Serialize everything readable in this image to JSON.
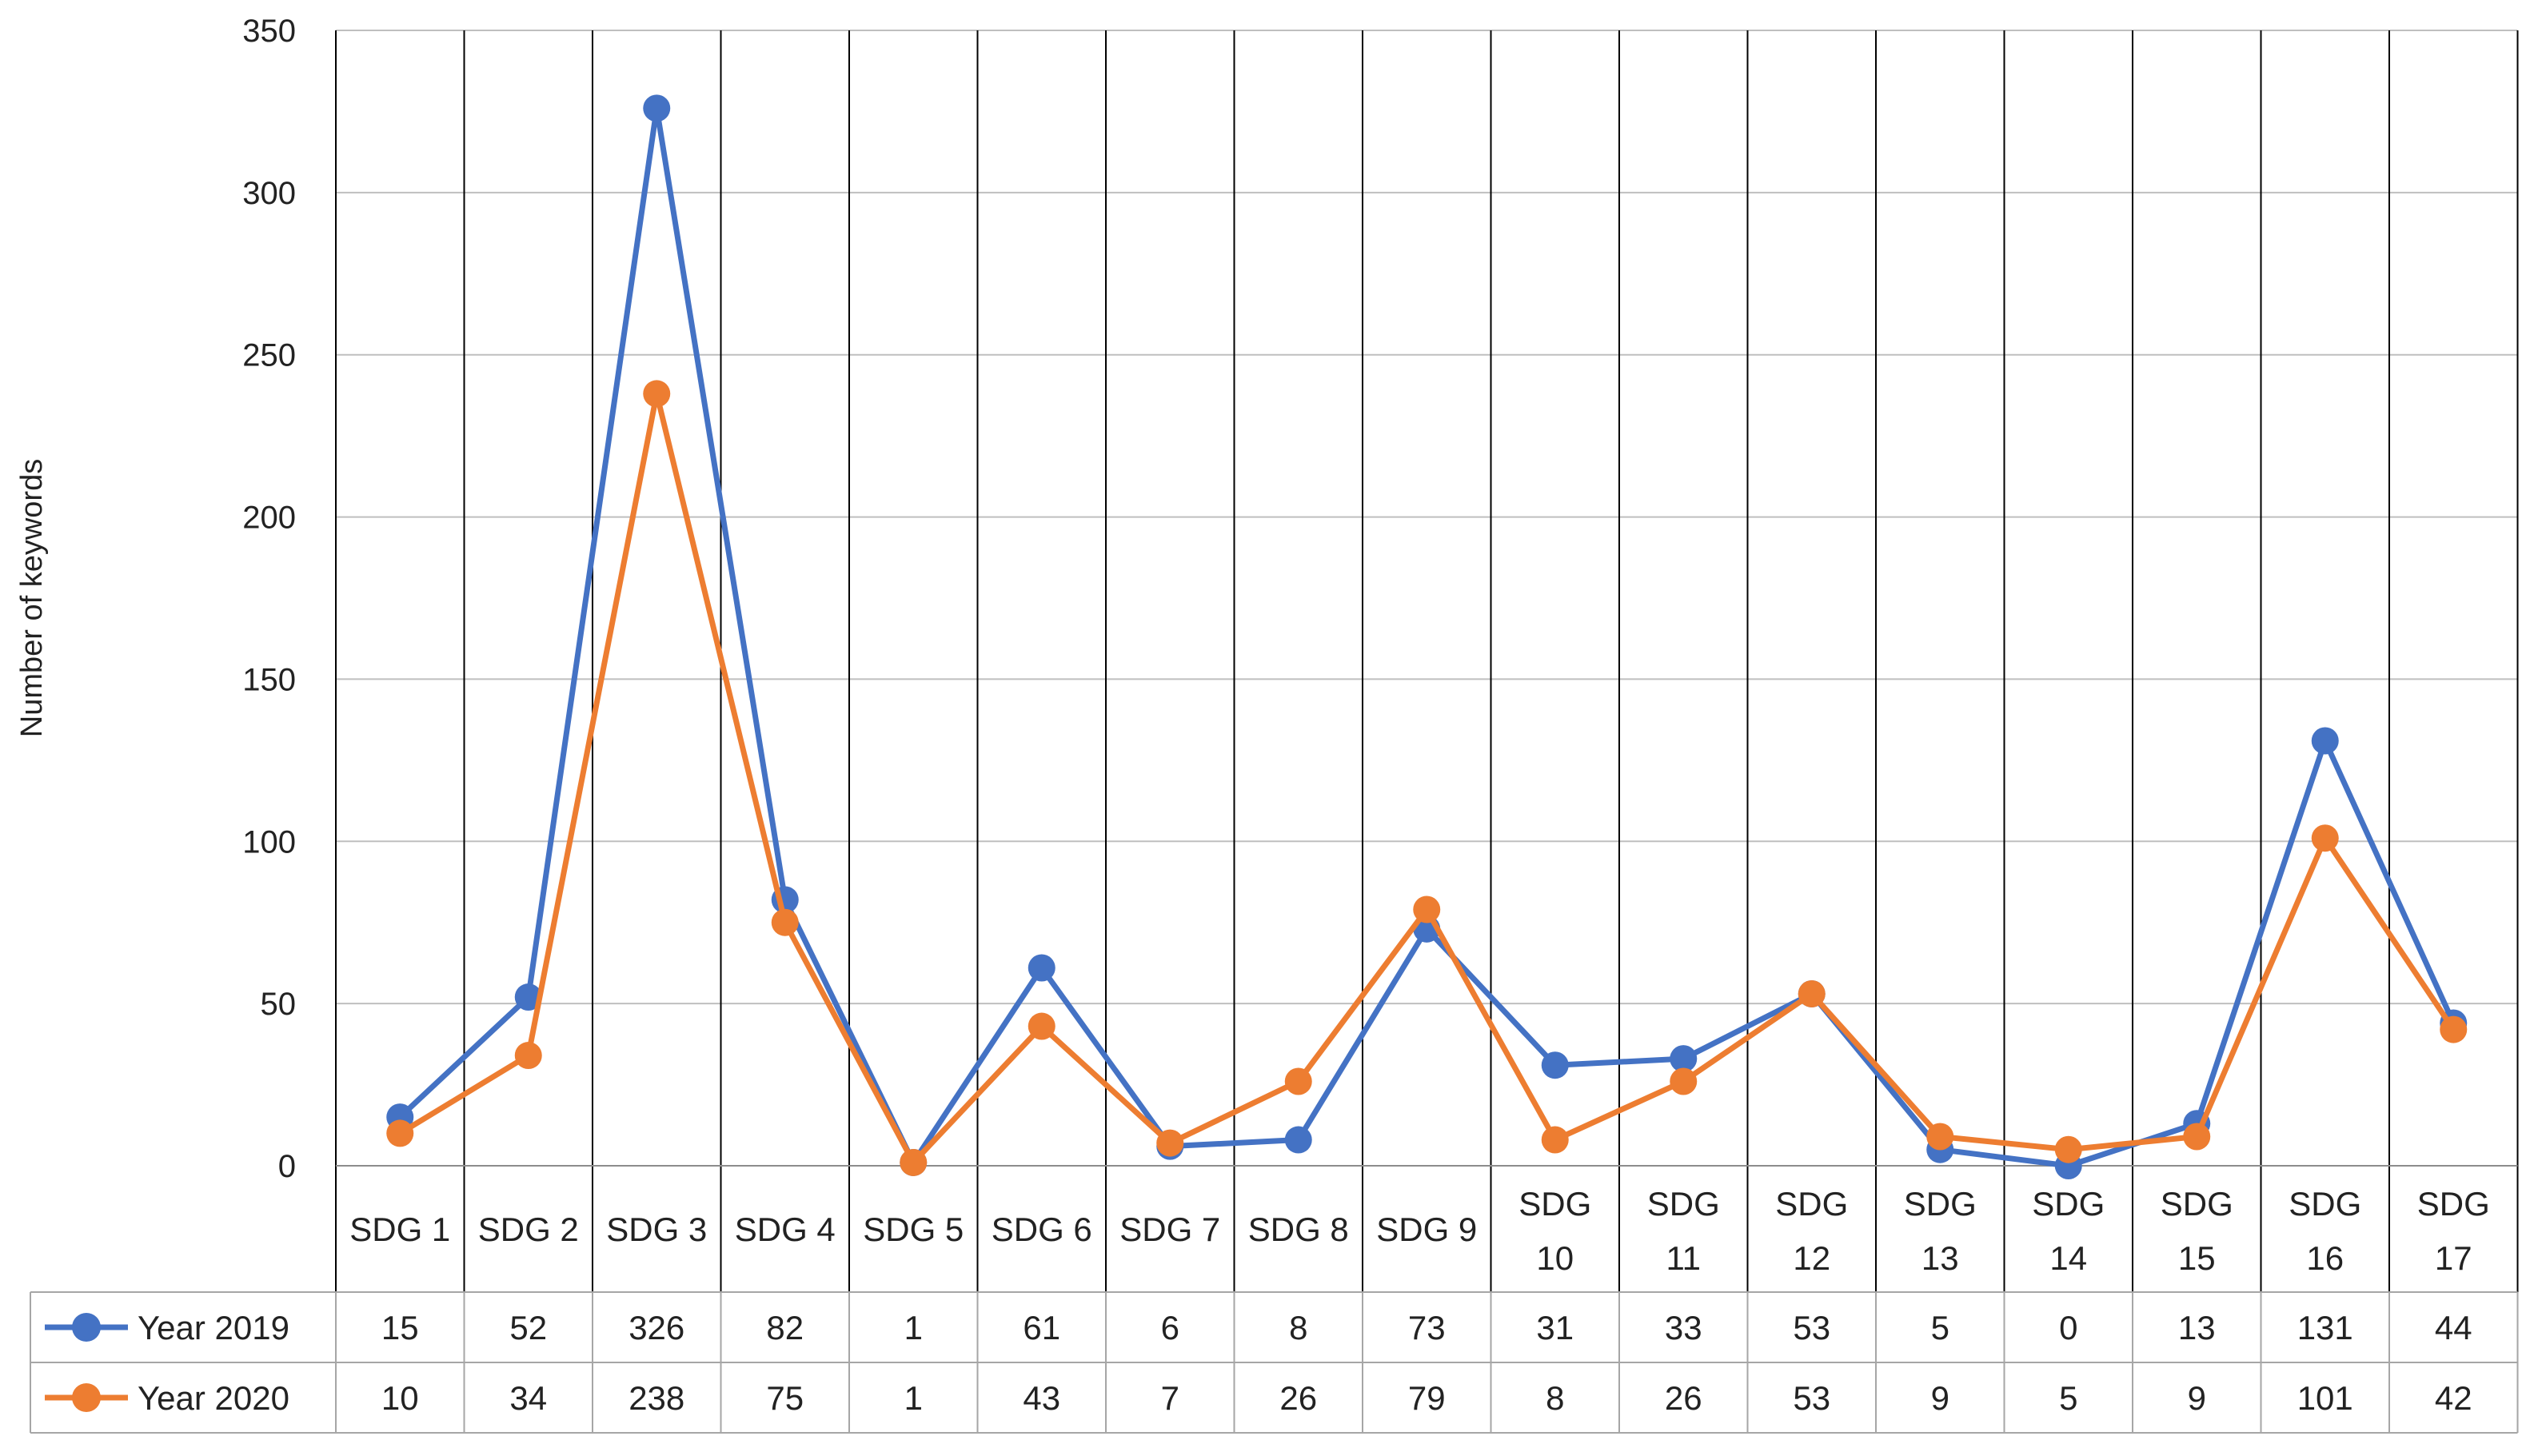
{
  "chart_data": {
    "type": "line",
    "title": "",
    "ylabel": "Number of keywords",
    "xlabel": "",
    "ylim": [
      0,
      350
    ],
    "yticks": [
      0,
      50,
      100,
      150,
      200,
      250,
      300,
      350
    ],
    "grid": true,
    "legend_placement": "data-table-left",
    "categories": [
      [
        "SDG 1"
      ],
      [
        "SDG 2"
      ],
      [
        "SDG 3"
      ],
      [
        "SDG 4"
      ],
      [
        "SDG 5"
      ],
      [
        "SDG 6"
      ],
      [
        "SDG 7"
      ],
      [
        "SDG 8"
      ],
      [
        "SDG 9"
      ],
      [
        "SDG",
        "10"
      ],
      [
        "SDG",
        "11"
      ],
      [
        "SDG",
        "12"
      ],
      [
        "SDG",
        "13"
      ],
      [
        "SDG",
        "14"
      ],
      [
        "SDG",
        "15"
      ],
      [
        "SDG",
        "16"
      ],
      [
        "SDG",
        "17"
      ]
    ],
    "series": [
      {
        "name": "Year 2019",
        "color": "#4472C4",
        "values": [
          15,
          52,
          326,
          82,
          1,
          61,
          6,
          8,
          73,
          31,
          33,
          53,
          5,
          0,
          13,
          131,
          44
        ]
      },
      {
        "name": "Year 2020",
        "color": "#ED7D31",
        "values": [
          10,
          34,
          238,
          75,
          1,
          43,
          7,
          26,
          79,
          8,
          26,
          53,
          9,
          5,
          9,
          101,
          42
        ]
      }
    ]
  }
}
